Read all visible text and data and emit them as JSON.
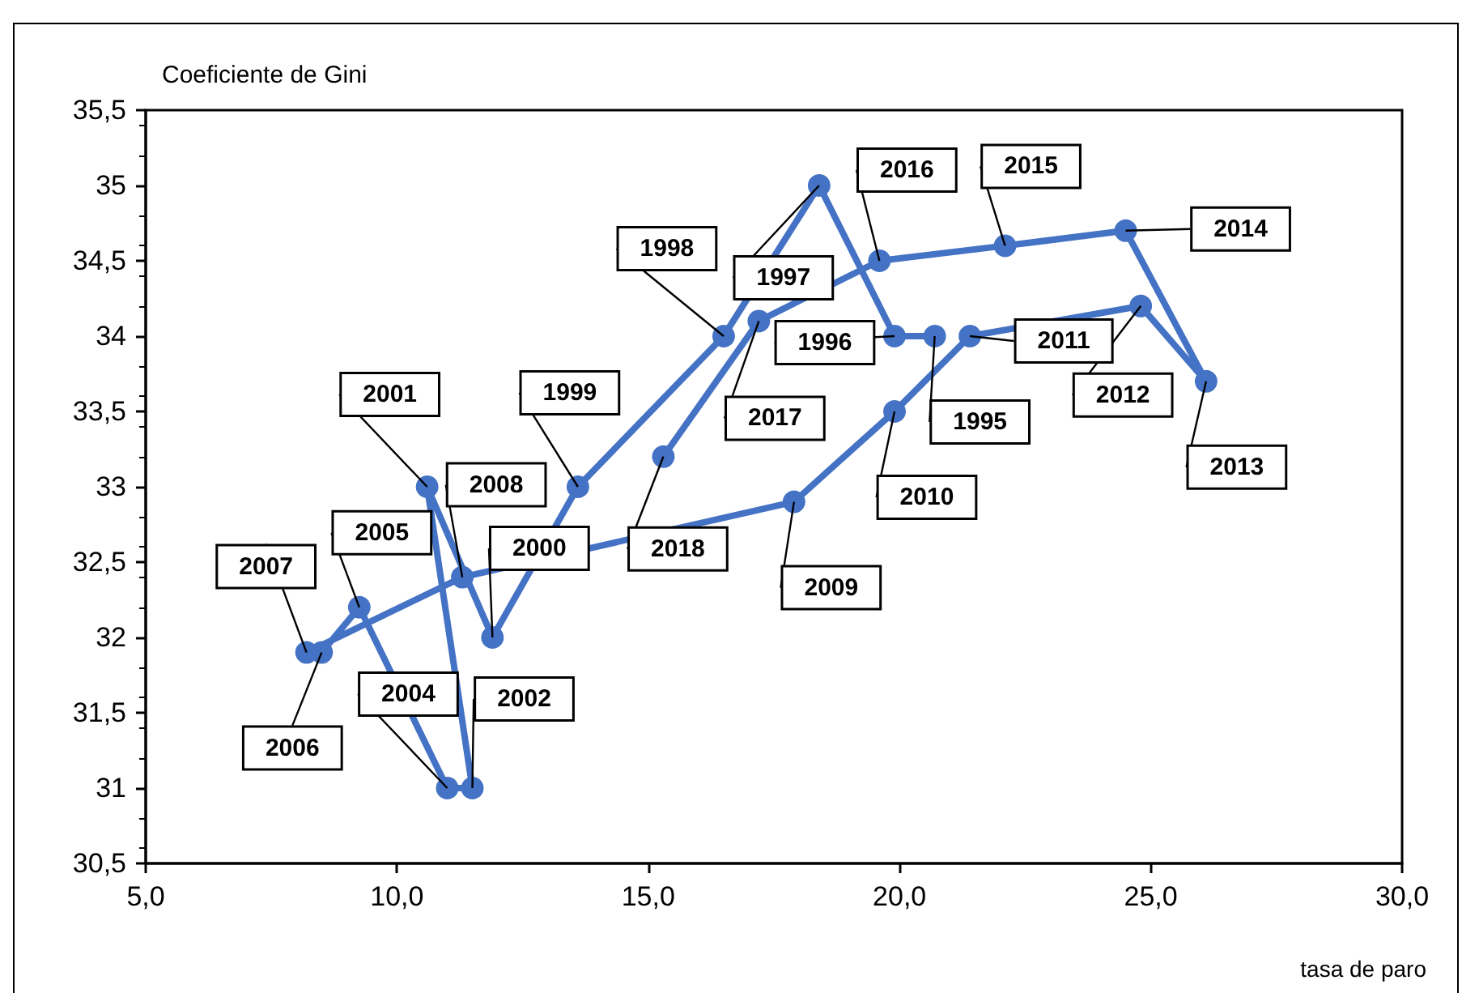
{
  "chart_data": {
    "type": "line",
    "xlabel": "tasa de paro",
    "ylabel": "Coeficiente de Gini",
    "x": [
      20.7,
      19.9,
      18.4,
      16.5,
      13.6,
      11.9,
      10.6,
      11.5,
      11.0,
      9.25,
      8.5,
      8.2,
      11.3,
      17.9,
      19.9,
      21.4,
      24.8,
      26.1,
      24.5,
      22.1,
      19.6,
      17.2,
      15.3
    ],
    "series": [
      {
        "color": "#4472c4",
        "values": [
          34.0,
          34.0,
          35.0,
          34.0,
          33.0,
          32.0,
          33.0,
          31.0,
          31.0,
          32.2,
          31.9,
          31.9,
          32.4,
          32.9,
          33.5,
          34.0,
          34.2,
          33.7,
          34.7,
          34.6,
          34.5,
          34.1,
          33.2
        ]
      }
    ],
    "xlim": [
      5,
      30
    ],
    "ylim": [
      30.5,
      35.5
    ],
    "xticks": [
      {
        "value": 5,
        "label": "5,0"
      },
      {
        "value": 10,
        "label": "10,0"
      },
      {
        "value": 15,
        "label": "15,0"
      },
      {
        "value": 20,
        "label": "20,0"
      },
      {
        "value": 25,
        "label": "25,0"
      },
      {
        "value": 30,
        "label": "30,0"
      }
    ],
    "yticks": [
      {
        "value": 30.5,
        "label": "30,5"
      },
      31,
      {
        "value": 31.5,
        "label": "31,5"
      },
      32,
      {
        "value": 32.5,
        "label": "32,5"
      },
      33,
      {
        "value": 33.5,
        "label": "33,5"
      },
      34,
      {
        "value": 34.5,
        "label": "34,5"
      },
      35,
      {
        "value": 35.5,
        "label": "35,5"
      }
    ],
    "marker": "circle",
    "line_style": "solid",
    "annotations": [
      {
        "text": "1995",
        "x": 20.7,
        "y": 34.0
      },
      {
        "text": "1996",
        "x": 19.9,
        "y": 34.0
      },
      {
        "text": "1997",
        "x": 18.4,
        "y": 35.0
      },
      {
        "text": "1998",
        "x": 16.5,
        "y": 34.0
      },
      {
        "text": "1999",
        "x": 13.6,
        "y": 33.0
      },
      {
        "text": "2000",
        "x": 11.9,
        "y": 32.0
      },
      {
        "text": "2001",
        "x": 10.6,
        "y": 33.0
      },
      {
        "text": "2002",
        "x": 11.5,
        "y": 31.0
      },
      {
        "text": "2004",
        "x": 11.0,
        "y": 31.0
      },
      {
        "text": "2005",
        "x": 9.25,
        "y": 32.2
      },
      {
        "text": "2006",
        "x": 8.5,
        "y": 31.9
      },
      {
        "text": "2007",
        "x": 8.2,
        "y": 31.9
      },
      {
        "text": "2008",
        "x": 11.3,
        "y": 32.4
      },
      {
        "text": "2009",
        "x": 17.9,
        "y": 32.9
      },
      {
        "text": "2010",
        "x": 19.9,
        "y": 33.5
      },
      {
        "text": "2011",
        "x": 21.4,
        "y": 34.0
      },
      {
        "text": "2012",
        "x": 24.8,
        "y": 34.2
      },
      {
        "text": "2013",
        "x": 26.1,
        "y": 33.7
      },
      {
        "text": "2014",
        "x": 24.5,
        "y": 34.7
      },
      {
        "text": "2015",
        "x": 22.1,
        "y": 34.6
      },
      {
        "text": "2016",
        "x": 19.6,
        "y": 34.5
      },
      {
        "text": "2017",
        "x": 17.2,
        "y": 34.1
      },
      {
        "text": "2018",
        "x": 15.3,
        "y": 33.2
      }
    ]
  }
}
